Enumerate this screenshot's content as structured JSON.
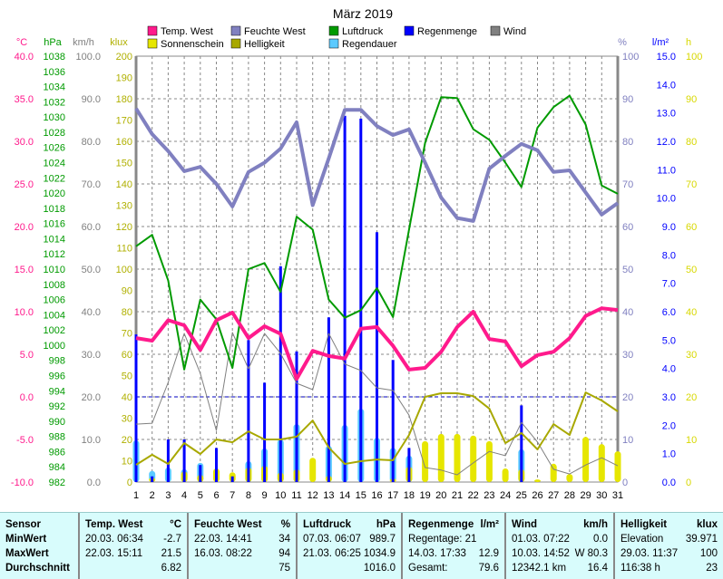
{
  "chart_data": {
    "type": "combo",
    "title": "März 2019",
    "x_ticks": [
      1,
      2,
      3,
      4,
      5,
      6,
      7,
      8,
      9,
      10,
      11,
      12,
      13,
      14,
      15,
      16,
      17,
      18,
      19,
      20,
      21,
      22,
      23,
      24,
      25,
      26,
      27,
      28,
      29,
      30,
      31
    ],
    "axes": {
      "temp": {
        "label": "°C",
        "range": [
          -10,
          40
        ],
        "step": 5,
        "decimals": 1,
        "color": "#ff1a8c"
      },
      "pressure": {
        "label": "hPa",
        "range": [
          982,
          1038
        ],
        "step": 2,
        "decimals": 0,
        "color": "#009a00"
      },
      "wind": {
        "label": "km/h",
        "range": [
          0,
          100
        ],
        "step": 10,
        "decimals": 1,
        "color": "#808080"
      },
      "light": {
        "label": "klux",
        "range": [
          0,
          200
        ],
        "step": 10,
        "decimals": 0,
        "color": "#b0b000"
      },
      "humidity": {
        "label": "%",
        "range": [
          0,
          100
        ],
        "step": 10,
        "decimals": 0,
        "color": "#8080c0"
      },
      "rain": {
        "label": "l/m²",
        "range": [
          0,
          15
        ],
        "step": 1,
        "decimals": 1,
        "color": "#0000ff"
      },
      "hours": {
        "label": "h",
        "range": [
          0,
          100
        ],
        "step": 10,
        "decimals": 0,
        "color": "#d8d800"
      }
    },
    "grid": true,
    "zero_line_temp": 0,
    "legend_position": "top",
    "series": [
      {
        "name": "Temp. West",
        "type": "line",
        "axis": "temp",
        "color": "#ff1a8c",
        "values": [
          6.9,
          6.6,
          9.0,
          8.4,
          5.5,
          9.0,
          9.9,
          6.9,
          8.3,
          7.4,
          2.1,
          5.4,
          4.8,
          4.5,
          8.0,
          8.2,
          6.0,
          3.2,
          3.4,
          5.3,
          8.2,
          10.0,
          6.8,
          6.5,
          3.6,
          4.9,
          5.3,
          6.9,
          9.5,
          10.4,
          10.2
        ]
      },
      {
        "name": "Feuchte West",
        "type": "line",
        "axis": "humidity",
        "color": "#8080c0",
        "values": [
          87.7,
          81.7,
          77.7,
          73,
          74,
          70,
          64.7,
          72.8,
          75,
          78.3,
          84.5,
          65,
          76,
          87.4,
          87.4,
          83.6,
          81.5,
          82.8,
          75,
          66.8,
          62,
          61.3,
          73.6,
          76.6,
          79.4,
          77.9,
          72.8,
          73.2,
          68,
          62.8,
          65.5
        ]
      },
      {
        "name": "Luftdruck",
        "type": "line",
        "axis": "pressure",
        "color": "#009a00",
        "values": [
          1013.0,
          1014.5,
          1008.5,
          996.8,
          1006.0,
          1003.4,
          997.0,
          1010.0,
          1010.8,
          1007.0,
          1016.9,
          1015.2,
          1006.0,
          1003.6,
          1004.6,
          1007.5,
          1003.7,
          1015.2,
          1026.6,
          1032.6,
          1032.5,
          1028.4,
          1027.0,
          1024.0,
          1020.8,
          1028.6,
          1031.3,
          1032.8,
          1029.0,
          1021.0,
          1019.9
        ]
      },
      {
        "name": "Regenmenge",
        "type": "bar",
        "axis": "rain",
        "color": "#0000ff",
        "values": [
          5.2,
          0.2,
          1.5,
          1.5,
          0.6,
          1.2,
          0.2,
          5.0,
          3.5,
          7.6,
          4.6,
          0,
          5.8,
          12.9,
          12.8,
          8.8,
          4.3,
          1.2,
          0,
          0,
          0,
          0,
          0,
          0,
          2.7,
          0,
          0,
          0,
          0,
          0,
          0
        ]
      },
      {
        "name": "Wind",
        "type": "line",
        "axis": "wind",
        "color": "#808080",
        "values": [
          13.6,
          13.8,
          23.4,
          34.9,
          25.5,
          12.1,
          35.1,
          26.6,
          34.9,
          30.2,
          23.2,
          21.7,
          34.9,
          27.7,
          26.2,
          22.1,
          21.5,
          15.7,
          3.4,
          2.8,
          1.7,
          4.5,
          7.2,
          6.2,
          14.0,
          9.4,
          3.0,
          1.9,
          4.0,
          5.7,
          3.8
        ]
      },
      {
        "name": "Sonnenschein",
        "type": "bar",
        "axis": "hours",
        "color": "#e6e600",
        "values": [
          0,
          1.0,
          0,
          2.5,
          1.7,
          3.2,
          2.3,
          3.4,
          3.8,
          2.2,
          3.0,
          5.7,
          1.5,
          0,
          0,
          0,
          0.8,
          3.6,
          9.6,
          11.3,
          11.3,
          10.9,
          9.6,
          3.2,
          3.0,
          0.6,
          4.3,
          1.9,
          10.6,
          8.9,
          7.2
        ]
      },
      {
        "name": "Helligkeit",
        "type": "line",
        "axis": "light",
        "color": "#a8a800",
        "values": [
          8.1,
          12.8,
          8.5,
          18.3,
          13.2,
          20,
          18.7,
          23.8,
          20,
          20,
          21.3,
          28.9,
          16.2,
          8.5,
          9.8,
          10.6,
          10.2,
          22.1,
          40,
          41.7,
          41.7,
          40.4,
          34.5,
          18.3,
          23,
          15.3,
          27.2,
          22.1,
          42.1,
          38.3,
          33.2
        ]
      },
      {
        "name": "Regendauer",
        "type": "bar",
        "axis": "hours",
        "color": "#5ccaff",
        "values": [
          9.8,
          2.6,
          3.4,
          3.0,
          4.5,
          0,
          0,
          4.9,
          7.9,
          10,
          13.6,
          0,
          8.5,
          13.4,
          17.2,
          10.4,
          8,
          6.2,
          0,
          0,
          0,
          0,
          0,
          0,
          7.7,
          0,
          0,
          0,
          0,
          0,
          0
        ]
      }
    ]
  },
  "stats": {
    "columns": [
      {
        "header": "Sensor",
        "unit": "",
        "rows": [
          [
            "MinWert",
            ""
          ],
          [
            "MaxWert",
            ""
          ],
          [
            "Durchschnitt",
            ""
          ]
        ]
      },
      {
        "header": "Temp. West",
        "unit": "°C",
        "rows": [
          [
            "20.03.  06:34",
            "-2.7"
          ],
          [
            "22.03.  15:11",
            "21.5"
          ],
          [
            "",
            "6.82"
          ]
        ]
      },
      {
        "header": "Feuchte West",
        "unit": "%",
        "rows": [
          [
            "22.03.  14:41",
            "34"
          ],
          [
            "16.03.  08:22",
            "94"
          ],
          [
            "",
            "75"
          ]
        ]
      },
      {
        "header": "Luftdruck",
        "unit": "hPa",
        "rows": [
          [
            "07.03.  06:07",
            "989.7"
          ],
          [
            "21.03.  06:25",
            "1034.9"
          ],
          [
            "",
            "1016.0"
          ]
        ]
      },
      {
        "header": "Regenmenge",
        "unit": "l/m²",
        "rows": [
          [
            "Regentage: 21",
            ""
          ],
          [
            "14.03.  17:33",
            "12.9"
          ],
          [
            "Gesamt:",
            "79.6"
          ]
        ]
      },
      {
        "header": "Wind",
        "unit": "km/h",
        "rows": [
          [
            "01.03.  07:22",
            "0.0"
          ],
          [
            "10.03.  14:52",
            "W 80.3"
          ],
          [
            "12342.1 km",
            "16.4"
          ]
        ]
      },
      {
        "header": "Helligkeit",
        "unit": "klux",
        "rows": [
          [
            "Elevation",
            "39.971"
          ],
          [
            "29.03.  11:37",
            "100"
          ],
          [
            "116:38 h",
            "23"
          ]
        ]
      }
    ]
  }
}
